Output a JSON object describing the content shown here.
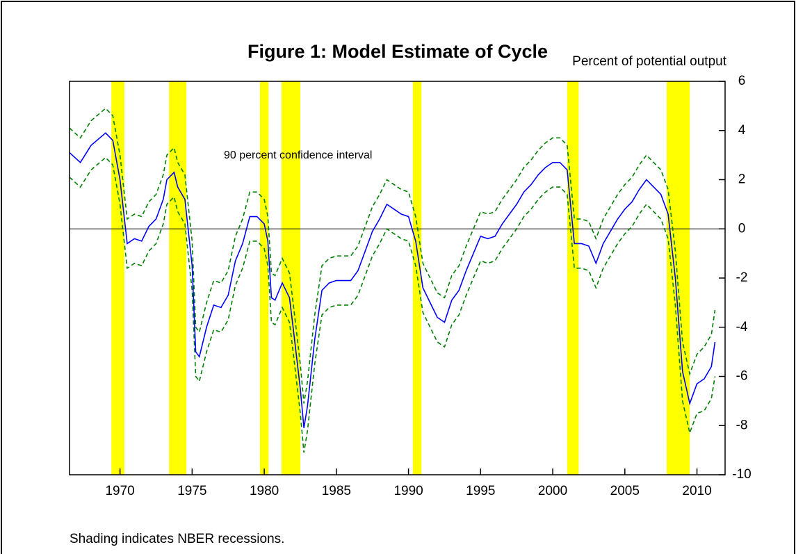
{
  "chart_data": {
    "type": "line",
    "title": "Figure 1:  Model Estimate of Cycle",
    "y_label": "Percent of potential output",
    "annotation": "90 percent confidence interval",
    "footnote": "Shading indicates NBER recessions.",
    "xlim": [
      1966.5,
      2011.95
    ],
    "ylim": [
      -10,
      6
    ],
    "xticks": [
      1970,
      1975,
      1980,
      1985,
      1990,
      1995,
      2000,
      2005,
      2010
    ],
    "yticks": [
      6,
      4,
      2,
      0,
      -2,
      -4,
      -6,
      -8,
      -10
    ],
    "reference_line": 0,
    "shaded_periods": [
      [
        1969.4,
        1970.3
      ],
      [
        1973.4,
        1974.6
      ],
      [
        1979.7,
        1980.3
      ],
      [
        1981.2,
        1982.5
      ],
      [
        1990.3,
        1990.9
      ],
      [
        2001.0,
        2001.8
      ],
      [
        2007.9,
        2009.5
      ]
    ],
    "shade_color": "#ffff00",
    "x": [
      1966.5,
      1967.25,
      1968,
      1969,
      1969.5,
      1970,
      1970.5,
      1971,
      1971.5,
      1972,
      1972.5,
      1973,
      1973.25,
      1973.75,
      1974,
      1974.5,
      1975,
      1975.25,
      1975.5,
      1976,
      1976.5,
      1977,
      1977.5,
      1978,
      1978.5,
      1979,
      1979.5,
      1980,
      1980.25,
      1980.5,
      1980.75,
      1981.25,
      1981.75,
      1982,
      1982.5,
      1982.75,
      1983,
      1983.5,
      1984,
      1984.5,
      1985,
      1986,
      1986.5,
      1987,
      1987.5,
      1988,
      1988.5,
      1989,
      1989.5,
      1990,
      1990.5,
      1991,
      1991.5,
      1992,
      1992.5,
      1993,
      1993.5,
      1994,
      1994.5,
      1995,
      1995.5,
      1996,
      1996.5,
      1997,
      1997.5,
      1998,
      1998.5,
      1999,
      1999.5,
      2000,
      2000.5,
      2001,
      2001.5,
      2002,
      2002.5,
      2003,
      2003.5,
      2004,
      2004.5,
      2005,
      2005.5,
      2006,
      2006.5,
      2007,
      2007.5,
      2008,
      2008.5,
      2009,
      2009.5,
      2010,
      2010.5,
      2011,
      2011.25
    ],
    "series": [
      {
        "color": "#008000",
        "line_style": "dashed",
        "values": [
          4.1,
          3.7,
          4.4,
          4.9,
          4.6,
          3.0,
          0.4,
          0.6,
          0.5,
          1.1,
          1.4,
          2.2,
          3.0,
          3.3,
          2.7,
          2.2,
          -0.5,
          -4.0,
          -4.2,
          -3.0,
          -2.1,
          -2.2,
          -1.7,
          -0.3,
          0.4,
          1.5,
          1.5,
          1.2,
          0.5,
          -1.8,
          -1.9,
          -1.2,
          -1.8,
          -3.0,
          -5.5,
          -7.1,
          -6.2,
          -3.5,
          -1.5,
          -1.2,
          -1.1,
          -1.1,
          -0.7,
          0.1,
          0.9,
          1.4,
          2.0,
          1.8,
          1.6,
          1.5,
          0.5,
          -1.4,
          -2.0,
          -2.6,
          -2.8,
          -1.9,
          -1.5,
          -0.7,
          0.0,
          0.7,
          0.6,
          0.7,
          1.2,
          1.6,
          2.0,
          2.5,
          2.8,
          3.2,
          3.5,
          3.7,
          3.7,
          3.4,
          0.4,
          0.4,
          0.3,
          -0.4,
          0.4,
          0.9,
          1.4,
          1.8,
          2.1,
          2.6,
          3.0,
          2.7,
          2.4,
          1.6,
          -0.9,
          -4.6,
          -5.9,
          -5.1,
          -4.8,
          -4.3,
          -3.3
        ]
      },
      {
        "color": "#008000",
        "line_style": "dashed",
        "values": [
          2.1,
          1.7,
          2.4,
          2.9,
          2.6,
          1.0,
          -1.6,
          -1.4,
          -1.5,
          -0.9,
          -0.6,
          0.2,
          1.0,
          1.3,
          0.7,
          0.2,
          -2.5,
          -6.0,
          -6.2,
          -5.0,
          -4.1,
          -4.2,
          -3.7,
          -2.3,
          -1.6,
          -0.5,
          -0.5,
          -0.8,
          -1.5,
          -3.8,
          -3.9,
          -3.2,
          -3.8,
          -5.0,
          -7.5,
          -9.1,
          -8.2,
          -5.5,
          -3.5,
          -3.2,
          -3.1,
          -3.1,
          -2.7,
          -1.9,
          -1.1,
          -0.6,
          0.0,
          -0.2,
          -0.4,
          -0.5,
          -1.5,
          -3.4,
          -4.0,
          -4.6,
          -4.8,
          -3.9,
          -3.5,
          -2.7,
          -2.0,
          -1.3,
          -1.4,
          -1.3,
          -0.8,
          -0.4,
          0.0,
          0.5,
          0.8,
          1.2,
          1.5,
          1.7,
          1.7,
          1.4,
          -1.6,
          -1.6,
          -1.7,
          -2.4,
          -1.6,
          -1.1,
          -0.6,
          -0.2,
          0.1,
          0.6,
          1.0,
          0.7,
          0.4,
          -0.4,
          -3.1,
          -7.0,
          -8.3,
          -7.5,
          -7.4,
          -6.9,
          -6.0
        ]
      },
      {
        "color": "#0000ff",
        "line_style": "solid",
        "values": [
          3.1,
          2.7,
          3.4,
          3.9,
          3.6,
          2.0,
          -0.6,
          -0.4,
          -0.5,
          0.1,
          0.4,
          1.2,
          2.0,
          2.3,
          1.7,
          1.2,
          -1.5,
          -5.0,
          -5.2,
          -4.0,
          -3.1,
          -3.2,
          -2.7,
          -1.3,
          -0.6,
          0.5,
          0.5,
          0.2,
          -0.5,
          -2.8,
          -2.9,
          -2.2,
          -2.8,
          -4.0,
          -6.5,
          -8.1,
          -7.2,
          -4.5,
          -2.5,
          -2.2,
          -2.1,
          -2.1,
          -1.7,
          -0.9,
          -0.1,
          0.4,
          1.0,
          0.8,
          0.6,
          0.5,
          -0.5,
          -2.4,
          -3.0,
          -3.6,
          -3.8,
          -2.9,
          -2.5,
          -1.7,
          -1.0,
          -0.3,
          -0.4,
          -0.3,
          0.2,
          0.6,
          1.0,
          1.5,
          1.8,
          2.2,
          2.5,
          2.7,
          2.7,
          2.4,
          -0.6,
          -0.6,
          -0.7,
          -1.4,
          -0.6,
          -0.1,
          0.4,
          0.8,
          1.1,
          1.6,
          2.0,
          1.7,
          1.4,
          0.6,
          -2.0,
          -5.8,
          -7.1,
          -6.3,
          -6.1,
          -5.6,
          -4.6
        ]
      }
    ]
  }
}
